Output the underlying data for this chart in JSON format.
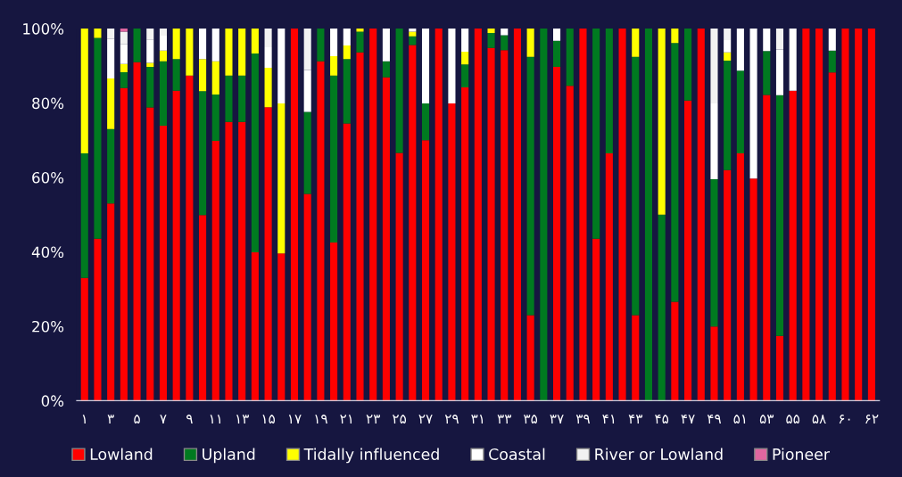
{
  "chart_data": {
    "type": "bar",
    "stacked": true,
    "categories": [
      "۱",
      null,
      "۳",
      null,
      "۵",
      null,
      "۷",
      null,
      "۹",
      null,
      "۱۱",
      null,
      "۱۳",
      null,
      "۱۵",
      null,
      "۱۷",
      null,
      "۱۹",
      null,
      "۲۱",
      null,
      "۲۳",
      null,
      "۲۵",
      null,
      "۲۷",
      null,
      "۲۹",
      null,
      "۳۱",
      null,
      "۳۳",
      null,
      "۳۵",
      null,
      "۳۷",
      null,
      "۳۹",
      null,
      "۴۱",
      null,
      "۴۳",
      null,
      "۴۵",
      null,
      "۴۷",
      null,
      "۴۹",
      null,
      "۵۱",
      null,
      "۵۳",
      null,
      "۵۵",
      null,
      "۵۸",
      null,
      "۶۰",
      null,
      "۶۲"
    ],
    "series": [
      {
        "name": "Lowland",
        "color": "#ff0000",
        "values": [
          33,
          43.5,
          53,
          84,
          91,
          78.8,
          73.9,
          83.3,
          87.4,
          49.9,
          69.8,
          74.9,
          74.9,
          39.9,
          78.9,
          39.6,
          100,
          55.6,
          91.2,
          42.5,
          74.5,
          93.6,
          100,
          86.9,
          66.6,
          95.6,
          70,
          100,
          79.9,
          84.2,
          100,
          94.8,
          94.2,
          100,
          23,
          0,
          89.7,
          84.6,
          100,
          43.5,
          66.5,
          100,
          23,
          0,
          0,
          26.6,
          80.7,
          100,
          19.9,
          62,
          66.5,
          59.7,
          82.2,
          17.4,
          83.3,
          100,
          100,
          88.2,
          100,
          100,
          100
        ]
      },
      {
        "name": "Upland",
        "color": "#007a20",
        "values": [
          33.5,
          54,
          20,
          4.3,
          9,
          10.9,
          17.3,
          8.5,
          0,
          33.3,
          12.5,
          12.5,
          12.5,
          53.4,
          0,
          0,
          0,
          22,
          8.8,
          44.9,
          17.3,
          5.6,
          0,
          4.3,
          33.4,
          2.3,
          9.9,
          0,
          0,
          6.2,
          0,
          4,
          4,
          0,
          69.4,
          100,
          7,
          15.4,
          0,
          56.5,
          33.5,
          0,
          69.4,
          100,
          50,
          69.5,
          19.3,
          0,
          39.6,
          29.4,
          22.2,
          0,
          11.8,
          64.7,
          0,
          0,
          0,
          5.9,
          0,
          0,
          0
        ]
      },
      {
        "name": "Tidally influenced",
        "color": "#ffff00",
        "values": [
          33.5,
          2.5,
          13.6,
          2.2,
          0,
          1.1,
          2.9,
          8.2,
          12.6,
          8.6,
          8.9,
          12.6,
          12.6,
          6.7,
          10.6,
          40.3,
          0,
          0,
          0,
          5.2,
          3.7,
          0.8,
          0,
          0,
          0,
          1.3,
          0,
          0,
          0,
          3.4,
          0,
          1.2,
          0,
          0,
          7.6,
          0,
          0,
          0,
          0,
          0,
          0,
          0,
          7.6,
          0,
          50,
          3.9,
          0,
          0,
          0,
          2.2,
          0,
          0,
          0,
          0,
          0,
          0,
          0,
          0,
          0,
          0,
          0
        ]
      },
      {
        "name": "Coastal",
        "color": "#ffffff",
        "values": [
          0,
          0,
          10.6,
          5.4,
          0,
          6.3,
          4,
          0,
          0,
          8.2,
          8.8,
          0,
          0,
          0,
          5.5,
          20.1,
          0,
          11.3,
          0,
          7.4,
          4.5,
          0,
          0,
          8.8,
          0,
          0.8,
          20.1,
          0,
          20.1,
          6.2,
          0,
          0,
          1.8,
          0,
          0,
          0,
          3.3,
          0,
          0,
          0,
          0,
          0,
          0,
          0,
          0,
          0,
          0,
          0,
          20.4,
          3.3,
          11.3,
          40.3,
          6,
          12.3,
          16.7,
          0,
          0,
          5.9,
          0,
          0,
          0
        ]
      },
      {
        "name": "River or Lowland",
        "color": "#f2f2f2",
        "values": [
          0,
          0,
          2.8,
          3.3,
          0,
          2.9,
          1.9,
          0,
          0,
          0,
          0,
          0,
          0,
          0,
          5,
          0,
          0,
          11.1,
          0,
          0,
          0,
          0,
          0,
          0,
          0,
          0,
          0,
          0,
          0,
          0,
          0,
          0,
          0,
          0,
          0,
          0,
          0,
          0,
          0,
          0,
          0,
          0,
          0,
          0,
          0,
          0,
          0,
          0,
          20.1,
          3.1,
          0,
          0,
          0,
          5.6,
          0,
          0,
          0,
          0,
          0,
          0,
          0
        ]
      },
      {
        "name": "Pioneer",
        "color": "#e066a0",
        "values": [
          0,
          0,
          0,
          0.8,
          0,
          0,
          0,
          0,
          0,
          0,
          0,
          0,
          0,
          0,
          0,
          0,
          0,
          0,
          0,
          0,
          0,
          0,
          0,
          0,
          0,
          0,
          0,
          0,
          0,
          0,
          0,
          0,
          0,
          0,
          0,
          0,
          0,
          0,
          0,
          0,
          0,
          0,
          0,
          0,
          0,
          0,
          0,
          0,
          0,
          0,
          0,
          0,
          0,
          0,
          0,
          0,
          0,
          0,
          0,
          0,
          0
        ]
      }
    ],
    "ylim": [
      0,
      100
    ],
    "yticks": [
      {
        "value": 0,
        "label": "0%"
      },
      {
        "value": 20,
        "label": "20%"
      },
      {
        "value": 40,
        "label": "40%"
      },
      {
        "value": 60,
        "label": "60%"
      },
      {
        "value": 80,
        "label": "80%"
      },
      {
        "value": 100,
        "label": "100%"
      }
    ],
    "grid": false,
    "legend": "bottom"
  }
}
